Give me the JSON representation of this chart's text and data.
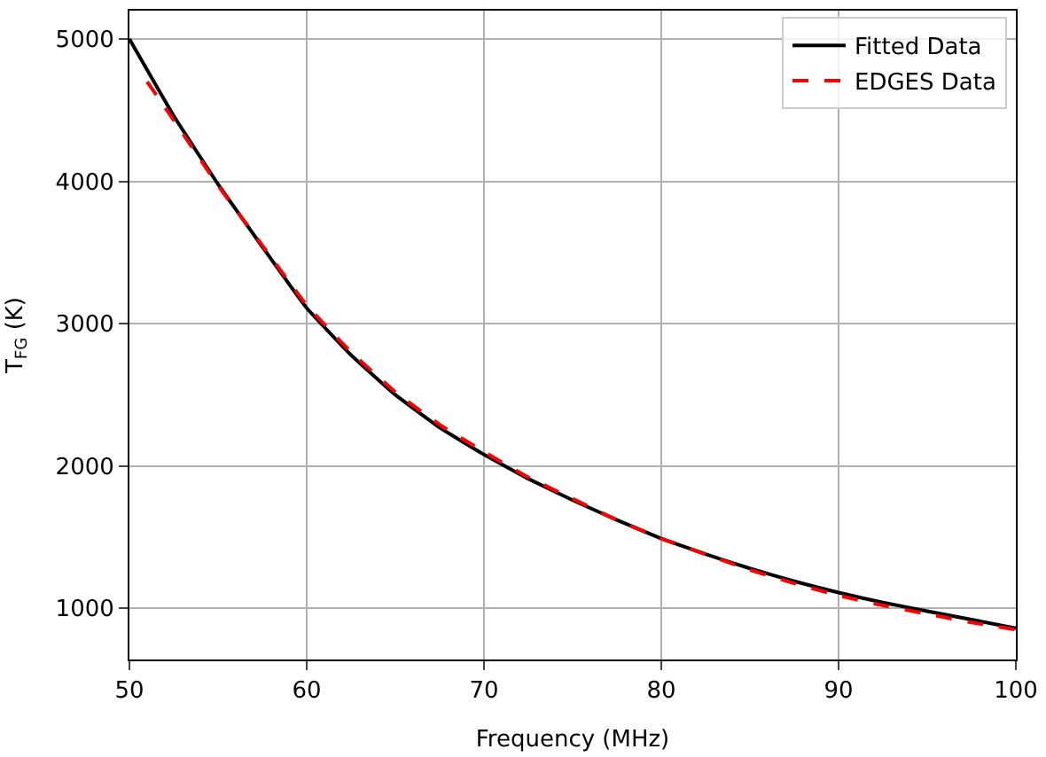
{
  "chart_data": {
    "type": "line",
    "xlabel": "Frequency (MHz)",
    "ylabel": "T$_{FG}$ (K)",
    "xlim": [
      50,
      100
    ],
    "xticks": [
      50,
      60,
      70,
      80,
      90,
      100
    ],
    "ylim": [
      640,
      5200
    ],
    "yticks": [
      1000,
      2000,
      3000,
      4000,
      5000
    ],
    "grid": true,
    "legend": "top right",
    "series": [
      {
        "name": "Fitted Data",
        "color": "#000000",
        "line_style": "solid",
        "x": [
          50,
          52.5,
          55,
          57.5,
          60,
          62.5,
          65,
          67.5,
          70,
          72.5,
          75,
          77.5,
          80,
          82.5,
          85,
          87.5,
          90,
          92.5,
          95,
          97.5,
          100
        ],
        "values": [
          5000,
          4460,
          3980,
          3540,
          3110,
          2780,
          2500,
          2270,
          2080,
          1910,
          1760,
          1620,
          1490,
          1380,
          1280,
          1190,
          1110,
          1040,
          980,
          920,
          860
        ]
      },
      {
        "name": "EDGES Data",
        "color": "#ff0000",
        "line_style": "dashed",
        "x": [
          51,
          52.5,
          55,
          57.5,
          60,
          62.5,
          65,
          67.5,
          70,
          72.5,
          75,
          77.5,
          80,
          82.5,
          85,
          87.5,
          90,
          92.5,
          95,
          97.5,
          100
        ],
        "values": [
          4700,
          4430,
          3970,
          3550,
          3130,
          2800,
          2520,
          2290,
          2100,
          1920,
          1770,
          1620,
          1490,
          1380,
          1270,
          1175,
          1090,
          1020,
          960,
          900,
          850
        ]
      }
    ]
  }
}
